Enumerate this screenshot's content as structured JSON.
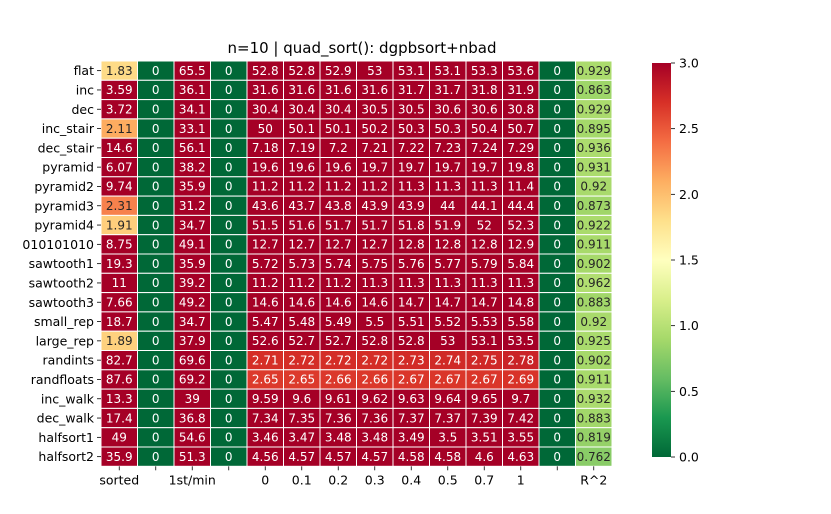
{
  "chart_data": {
    "type": "heatmap",
    "title": "n=10 | quad_sort(): dgpbsort+nbad",
    "xlabel": "",
    "ylabel": "",
    "columns": [
      "sorted",
      "",
      "1st/min",
      "",
      "0",
      "0.1",
      "0.2",
      "0.3",
      "0.4",
      "0.5",
      "0.7",
      "1",
      "",
      "R^2"
    ],
    "rows": [
      "flat",
      "inc",
      "dec",
      "inc_stair",
      "dec_stair",
      "pyramid",
      "pyramid2",
      "pyramid3",
      "pyramid4",
      "010101010",
      "sawtooth1",
      "sawtooth2",
      "sawtooth3",
      "small_rep",
      "large_rep",
      "randints",
      "randfloats",
      "inc_walk",
      "dec_walk",
      "halfsort1",
      "halfsort2"
    ],
    "values": [
      [
        "1.83",
        "0",
        "65.5",
        "0",
        "52.8",
        "52.8",
        "52.9",
        "53",
        "53.1",
        "53.1",
        "53.3",
        "53.6",
        "0",
        "0.929"
      ],
      [
        "3.59",
        "0",
        "36.1",
        "0",
        "31.6",
        "31.6",
        "31.6",
        "31.6",
        "31.7",
        "31.7",
        "31.8",
        "31.9",
        "0",
        "0.863"
      ],
      [
        "3.72",
        "0",
        "34.1",
        "0",
        "30.4",
        "30.4",
        "30.4",
        "30.5",
        "30.5",
        "30.6",
        "30.6",
        "30.8",
        "0",
        "0.929"
      ],
      [
        "2.11",
        "0",
        "33.1",
        "0",
        "50",
        "50.1",
        "50.1",
        "50.2",
        "50.3",
        "50.3",
        "50.4",
        "50.7",
        "0",
        "0.895"
      ],
      [
        "14.6",
        "0",
        "56.1",
        "0",
        "7.18",
        "7.19",
        "7.2",
        "7.21",
        "7.22",
        "7.23",
        "7.24",
        "7.29",
        "0",
        "0.936"
      ],
      [
        "6.07",
        "0",
        "38.2",
        "0",
        "19.6",
        "19.6",
        "19.6",
        "19.7",
        "19.7",
        "19.7",
        "19.7",
        "19.8",
        "0",
        "0.931"
      ],
      [
        "9.74",
        "0",
        "35.9",
        "0",
        "11.2",
        "11.2",
        "11.2",
        "11.2",
        "11.3",
        "11.3",
        "11.3",
        "11.4",
        "0",
        "0.92"
      ],
      [
        "2.31",
        "0",
        "31.2",
        "0",
        "43.6",
        "43.7",
        "43.8",
        "43.9",
        "43.9",
        "44",
        "44.1",
        "44.4",
        "0",
        "0.873"
      ],
      [
        "1.91",
        "0",
        "34.7",
        "0",
        "51.5",
        "51.6",
        "51.7",
        "51.7",
        "51.8",
        "51.9",
        "52",
        "52.3",
        "0",
        "0.922"
      ],
      [
        "8.75",
        "0",
        "49.1",
        "0",
        "12.7",
        "12.7",
        "12.7",
        "12.7",
        "12.8",
        "12.8",
        "12.8",
        "12.9",
        "0",
        "0.911"
      ],
      [
        "19.3",
        "0",
        "35.9",
        "0",
        "5.72",
        "5.73",
        "5.74",
        "5.75",
        "5.76",
        "5.77",
        "5.79",
        "5.84",
        "0",
        "0.902"
      ],
      [
        "11",
        "0",
        "39.2",
        "0",
        "11.2",
        "11.2",
        "11.2",
        "11.3",
        "11.3",
        "11.3",
        "11.3",
        "11.3",
        "0",
        "0.962"
      ],
      [
        "7.66",
        "0",
        "49.2",
        "0",
        "14.6",
        "14.6",
        "14.6",
        "14.6",
        "14.7",
        "14.7",
        "14.7",
        "14.8",
        "0",
        "0.883"
      ],
      [
        "18.7",
        "0",
        "34.7",
        "0",
        "5.47",
        "5.48",
        "5.49",
        "5.5",
        "5.51",
        "5.52",
        "5.53",
        "5.58",
        "0",
        "0.92"
      ],
      [
        "1.89",
        "0",
        "37.9",
        "0",
        "52.6",
        "52.7",
        "52.7",
        "52.8",
        "52.8",
        "53",
        "53.1",
        "53.5",
        "0",
        "0.925"
      ],
      [
        "82.7",
        "0",
        "69.6",
        "0",
        "2.71",
        "2.72",
        "2.72",
        "2.72",
        "2.73",
        "2.74",
        "2.75",
        "2.78",
        "0",
        "0.902"
      ],
      [
        "87.6",
        "0",
        "69.2",
        "0",
        "2.65",
        "2.65",
        "2.66",
        "2.66",
        "2.67",
        "2.67",
        "2.67",
        "2.69",
        "0",
        "0.911"
      ],
      [
        "13.3",
        "0",
        "39",
        "0",
        "9.59",
        "9.6",
        "9.61",
        "9.62",
        "9.63",
        "9.64",
        "9.65",
        "9.7",
        "0",
        "0.932"
      ],
      [
        "17.4",
        "0",
        "36.8",
        "0",
        "7.34",
        "7.35",
        "7.36",
        "7.36",
        "7.37",
        "7.37",
        "7.39",
        "7.42",
        "0",
        "0.883"
      ],
      [
        "49",
        "0",
        "54.6",
        "0",
        "3.46",
        "3.47",
        "3.48",
        "3.48",
        "3.49",
        "3.5",
        "3.51",
        "3.55",
        "0",
        "0.819"
      ],
      [
        "35.9",
        "0",
        "51.3",
        "0",
        "4.56",
        "4.57",
        "4.57",
        "4.57",
        "4.58",
        "4.58",
        "4.6",
        "4.63",
        "0",
        "0.762"
      ]
    ],
    "colorbar": {
      "cmap": "RdYlGn_r",
      "vmin": 0,
      "vmax": 3,
      "ticks": [
        "0.0",
        "0.5",
        "1.0",
        "1.5",
        "2.0",
        "2.5",
        "3.0"
      ]
    },
    "colors": {
      "max_red": "#a50026",
      "min_green": "#006837",
      "cell_border": "#ffffff"
    },
    "grid": false,
    "legend": "colorbar-right"
  }
}
